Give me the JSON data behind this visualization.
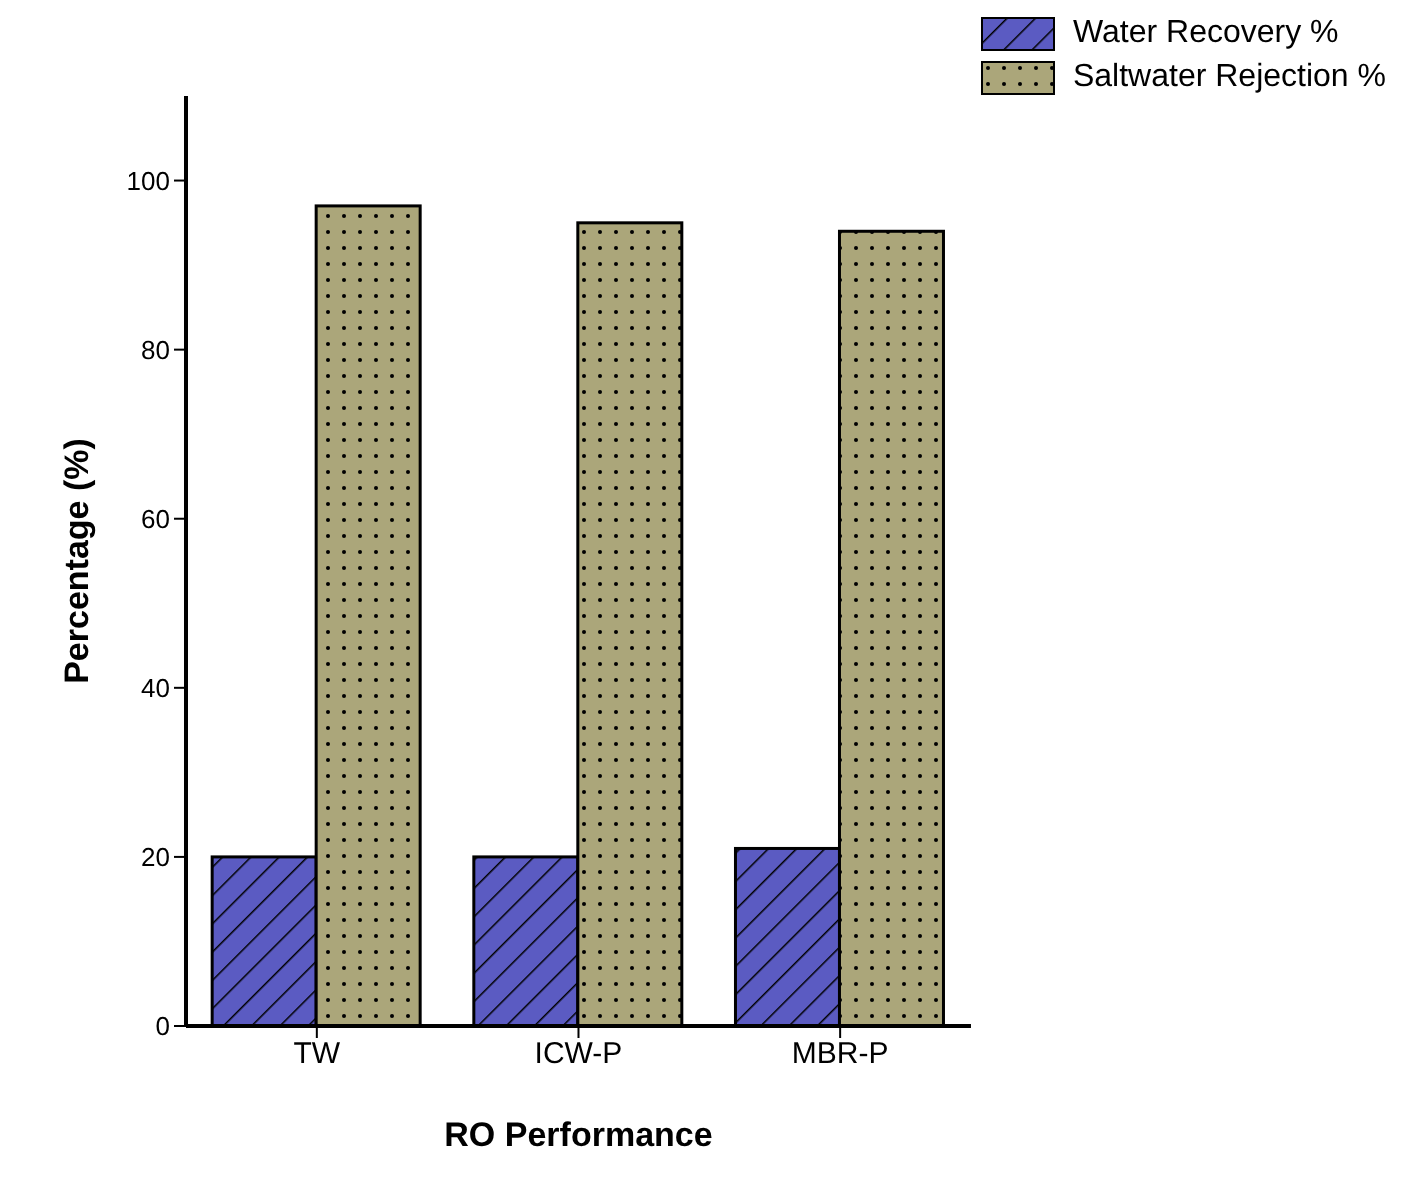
{
  "chart_data": {
    "type": "bar",
    "xlabel": "RO Performance",
    "ylabel": "Percentage (%)",
    "categories": [
      "TW",
      "ICW-P",
      "MBR-P"
    ],
    "series": [
      {
        "name": "Water Recovery %",
        "color": "#5b5bc2",
        "values": [
          20,
          20,
          21
        ]
      },
      {
        "name": "Saltwater Rejection %",
        "color": "#aba67a",
        "values": [
          97,
          95,
          94
        ]
      }
    ],
    "ylim": [
      0,
      110
    ],
    "yticks": [
      0,
      20,
      40,
      60,
      80,
      100
    ],
    "grid": false,
    "legend": "top right"
  }
}
